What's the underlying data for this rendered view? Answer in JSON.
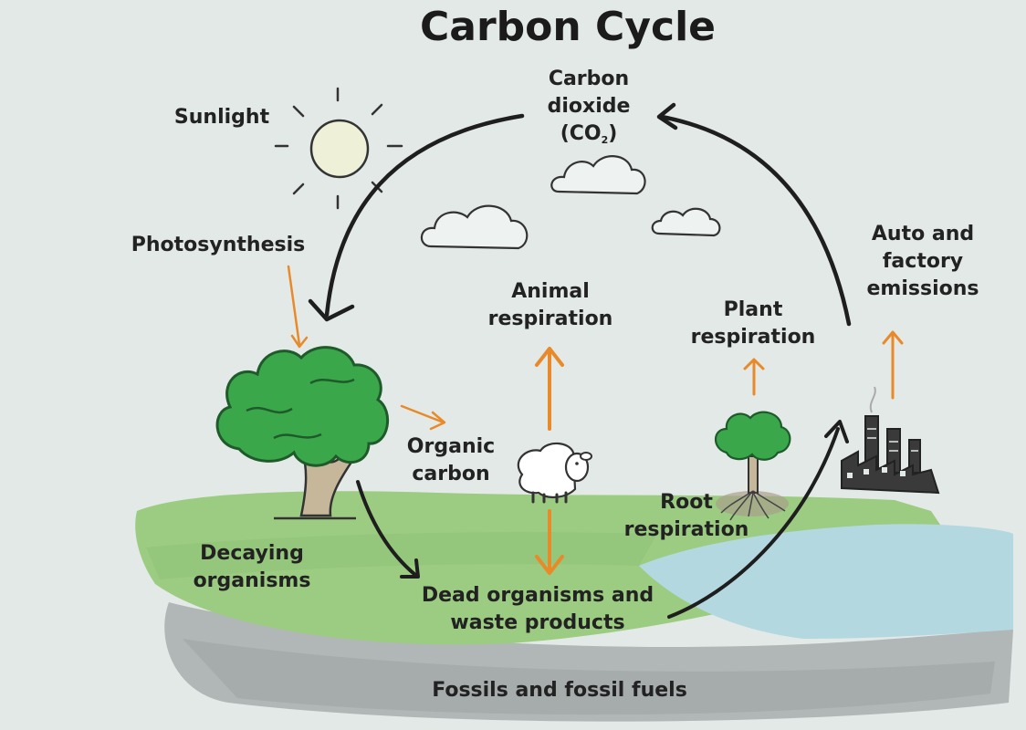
{
  "title": "Carbon Cycle",
  "labels": {
    "co2": {
      "line1": "Carbon",
      "line2": "dioxide",
      "line3_pre": "(CO",
      "line3_sub": "2",
      "line3_post": ")"
    },
    "sunlight": "Sunlight",
    "photosynthesis": "Photosynthesis",
    "animal_respiration": {
      "line1": "Animal",
      "line2": "respiration"
    },
    "plant_respiration": {
      "line1": "Plant",
      "line2": "respiration"
    },
    "emissions": {
      "line1": "Auto and",
      "line2": "factory",
      "line3": "emissions"
    },
    "organic_carbon": {
      "line1": "Organic",
      "line2": "carbon"
    },
    "root_respiration": {
      "line1": "Root",
      "line2": "respiration"
    },
    "decaying": {
      "line1": "Decaying",
      "line2": "organisms"
    },
    "dead": {
      "line1": "Dead organisms and",
      "line2": "waste products"
    },
    "fossils": "Fossils and fossil fuels"
  },
  "colors": {
    "background": "#e3e9e7",
    "arrow_orange": "#e88a2a",
    "cycle_arrow": "#1e1e1e",
    "grass": "#9ccc82",
    "water": "#b4d8e0",
    "ground": "#aeb3b3",
    "tree_green": "#3aa84a"
  }
}
